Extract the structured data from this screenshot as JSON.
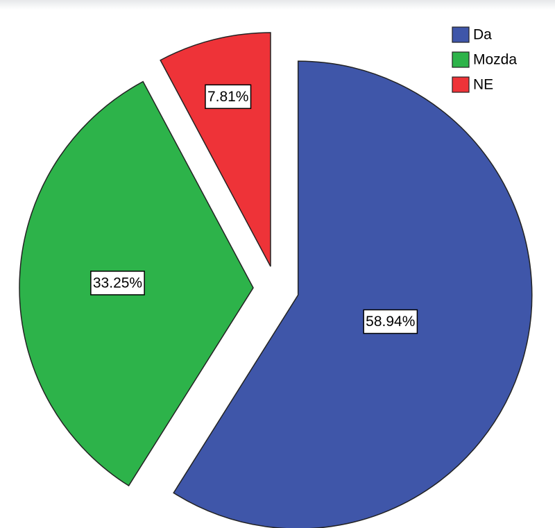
{
  "chart_data": {
    "type": "pie",
    "categories": [
      "Da",
      "Mozda",
      "NE"
    ],
    "values": [
      58.94,
      33.25,
      7.81
    ],
    "value_labels": [
      "58.94%",
      "33.25%",
      "7.81%"
    ],
    "colors": [
      "#3f56a9",
      "#2db34a",
      "#ee3338"
    ],
    "legend": "top-right"
  }
}
